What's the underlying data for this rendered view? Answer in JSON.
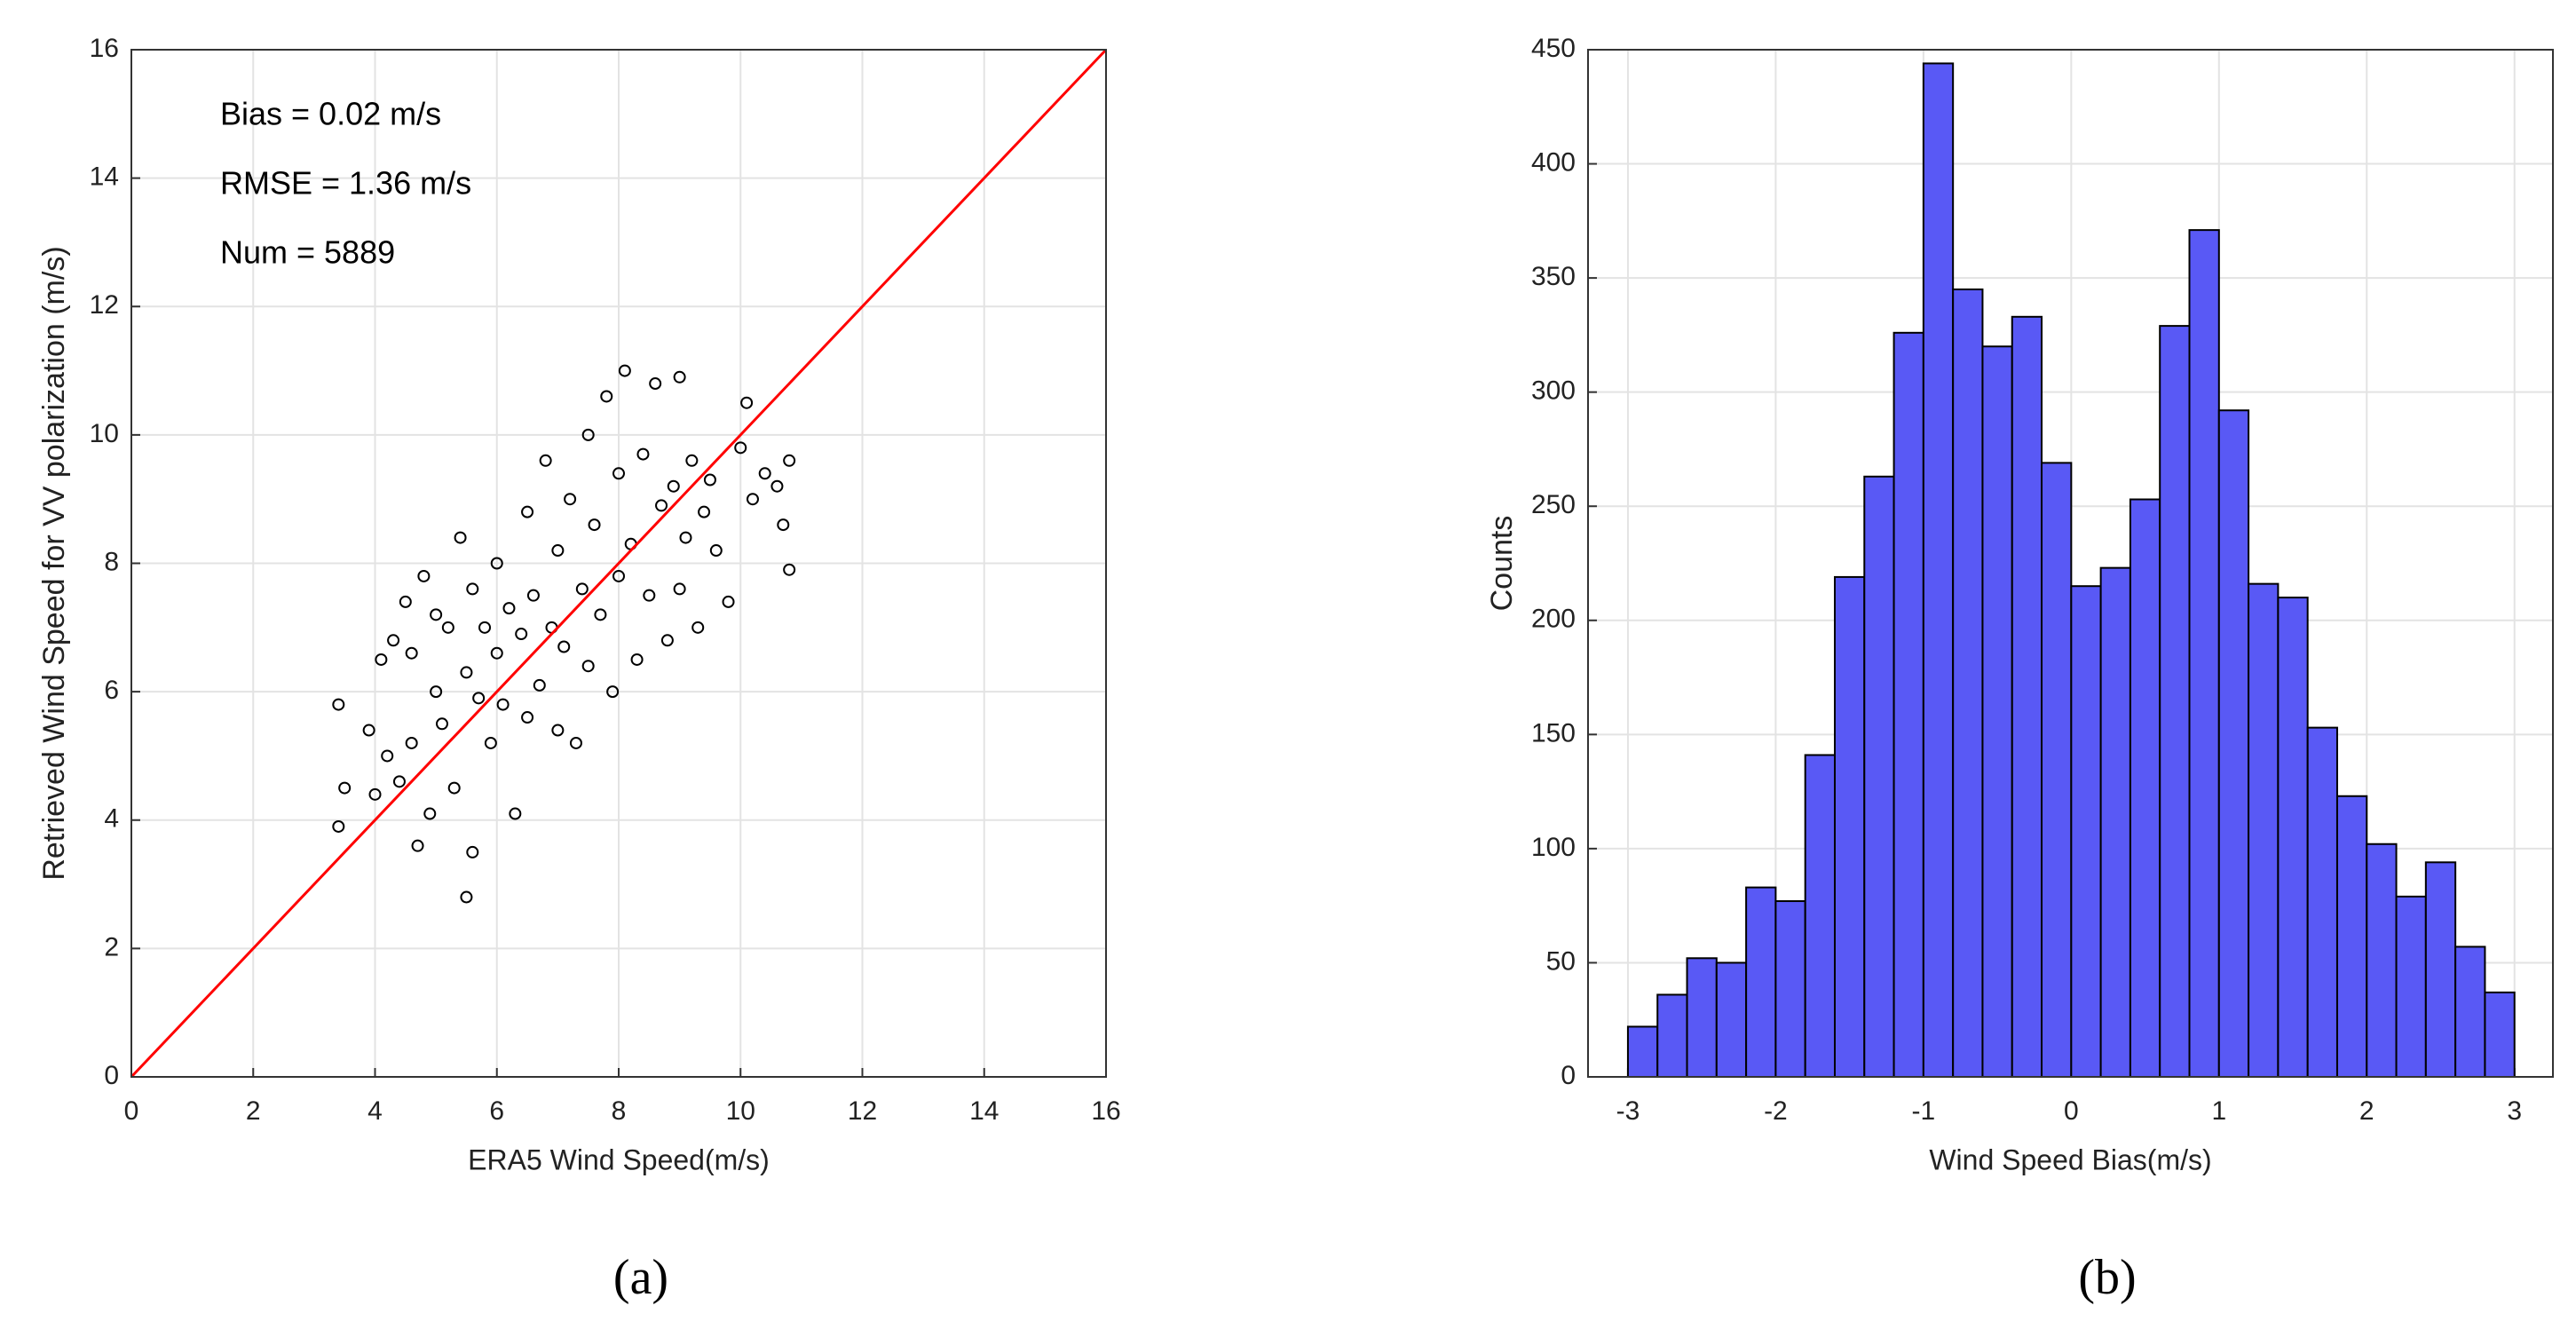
{
  "chart_data": [
    {
      "type": "scatter",
      "caption": "(a)",
      "xlabel": "ERA5 Wind Speed(m/s)",
      "ylabel": "Retrieved Wind Speed for VV polarization (m/s)",
      "annotations": [
        "Bias = 0.02 m/s",
        "RMSE = 1.36 m/s",
        "Num = 5889"
      ],
      "xlim": [
        0,
        16
      ],
      "ylim": [
        0,
        16
      ],
      "xticks": [
        0,
        2,
        4,
        6,
        8,
        10,
        12,
        14,
        16
      ],
      "yticks": [
        0,
        2,
        4,
        6,
        8,
        10,
        12,
        14,
        16
      ],
      "grid": true,
      "color": "#000000",
      "x": [
        3.4,
        3.4,
        3.5,
        3.9,
        4.0,
        4.1,
        4.2,
        4.3,
        4.4,
        4.5,
        4.6,
        4.6,
        4.7,
        4.8,
        4.9,
        5.0,
        5.0,
        5.1,
        5.2,
        5.3,
        5.4,
        5.5,
        5.5,
        5.6,
        5.6,
        5.7,
        5.8,
        5.9,
        6.0,
        6.0,
        6.1,
        6.2,
        6.3,
        6.4,
        6.5,
        6.5,
        6.6,
        6.7,
        6.8,
        6.9,
        7.0,
        7.0,
        7.1,
        7.2,
        7.3,
        7.4,
        7.5,
        7.5,
        7.6,
        7.7,
        7.8,
        7.9,
        8.0,
        8.0,
        8.1,
        8.2,
        8.3,
        8.4,
        8.5,
        8.6,
        8.7,
        8.8,
        8.9,
        9.0,
        9.0,
        9.1,
        9.2,
        9.3,
        9.4,
        9.5,
        9.6,
        9.8,
        10.0,
        10.1,
        10.2,
        10.4,
        10.6,
        10.7,
        10.8,
        10.8
      ],
      "values": [
        3.9,
        5.8,
        4.5,
        5.4,
        4.4,
        6.5,
        5.0,
        6.8,
        4.6,
        7.4,
        5.2,
        6.6,
        3.6,
        7.8,
        4.1,
        6.0,
        7.2,
        5.5,
        7.0,
        4.5,
        8.4,
        2.8,
        6.3,
        3.5,
        7.6,
        5.9,
        7.0,
        5.2,
        6.6,
        8.0,
        5.8,
        7.3,
        4.1,
        6.9,
        8.8,
        5.6,
        7.5,
        6.1,
        9.6,
        7.0,
        5.4,
        8.2,
        6.7,
        9.0,
        5.2,
        7.6,
        10.0,
        6.4,
        8.6,
        7.2,
        10.6,
        6.0,
        9.4,
        7.8,
        11.0,
        8.3,
        6.5,
        9.7,
        7.5,
        10.8,
        8.9,
        6.8,
        9.2,
        10.9,
        7.6,
        8.4,
        9.6,
        7.0,
        8.8,
        9.3,
        8.2,
        7.4,
        9.8,
        10.5,
        9.0,
        9.4,
        9.2,
        8.6,
        7.9,
        9.6
      ],
      "reference_line": {
        "x": [
          0,
          16
        ],
        "values": [
          0,
          16
        ],
        "color": "#ff0000"
      }
    },
    {
      "type": "histogram",
      "caption": "(b)",
      "xlabel": "Wind Speed Bias(m/s)",
      "ylabel": "Counts",
      "xlim": [
        -3.27,
        3.26
      ],
      "ylim": [
        0,
        450
      ],
      "xticks": [
        -3,
        -2,
        -1,
        0,
        1,
        2,
        3
      ],
      "yticks": [
        0,
        50,
        100,
        150,
        200,
        250,
        300,
        350,
        400,
        450
      ],
      "grid": true,
      "color": "#5959f5",
      "bins": [
        -3,
        -2.8,
        -2.6,
        -2.4,
        -2.2,
        -2,
        -1.8,
        -1.6,
        -1.4,
        -1.2,
        -1,
        -0.8,
        -0.6,
        -0.4,
        -0.2,
        0,
        0.2,
        0.4,
        0.6,
        0.8,
        1,
        1.2,
        1.4,
        1.6,
        1.8,
        2,
        2.2,
        2.4,
        2.6,
        2.8,
        3
      ],
      "values": [
        22,
        36,
        52,
        50,
        83,
        77,
        141,
        219,
        263,
        326,
        444,
        345,
        320,
        333,
        269,
        215,
        223,
        253,
        329,
        371,
        292,
        216,
        210,
        153,
        123,
        102,
        79,
        94,
        57,
        37
      ]
    }
  ]
}
